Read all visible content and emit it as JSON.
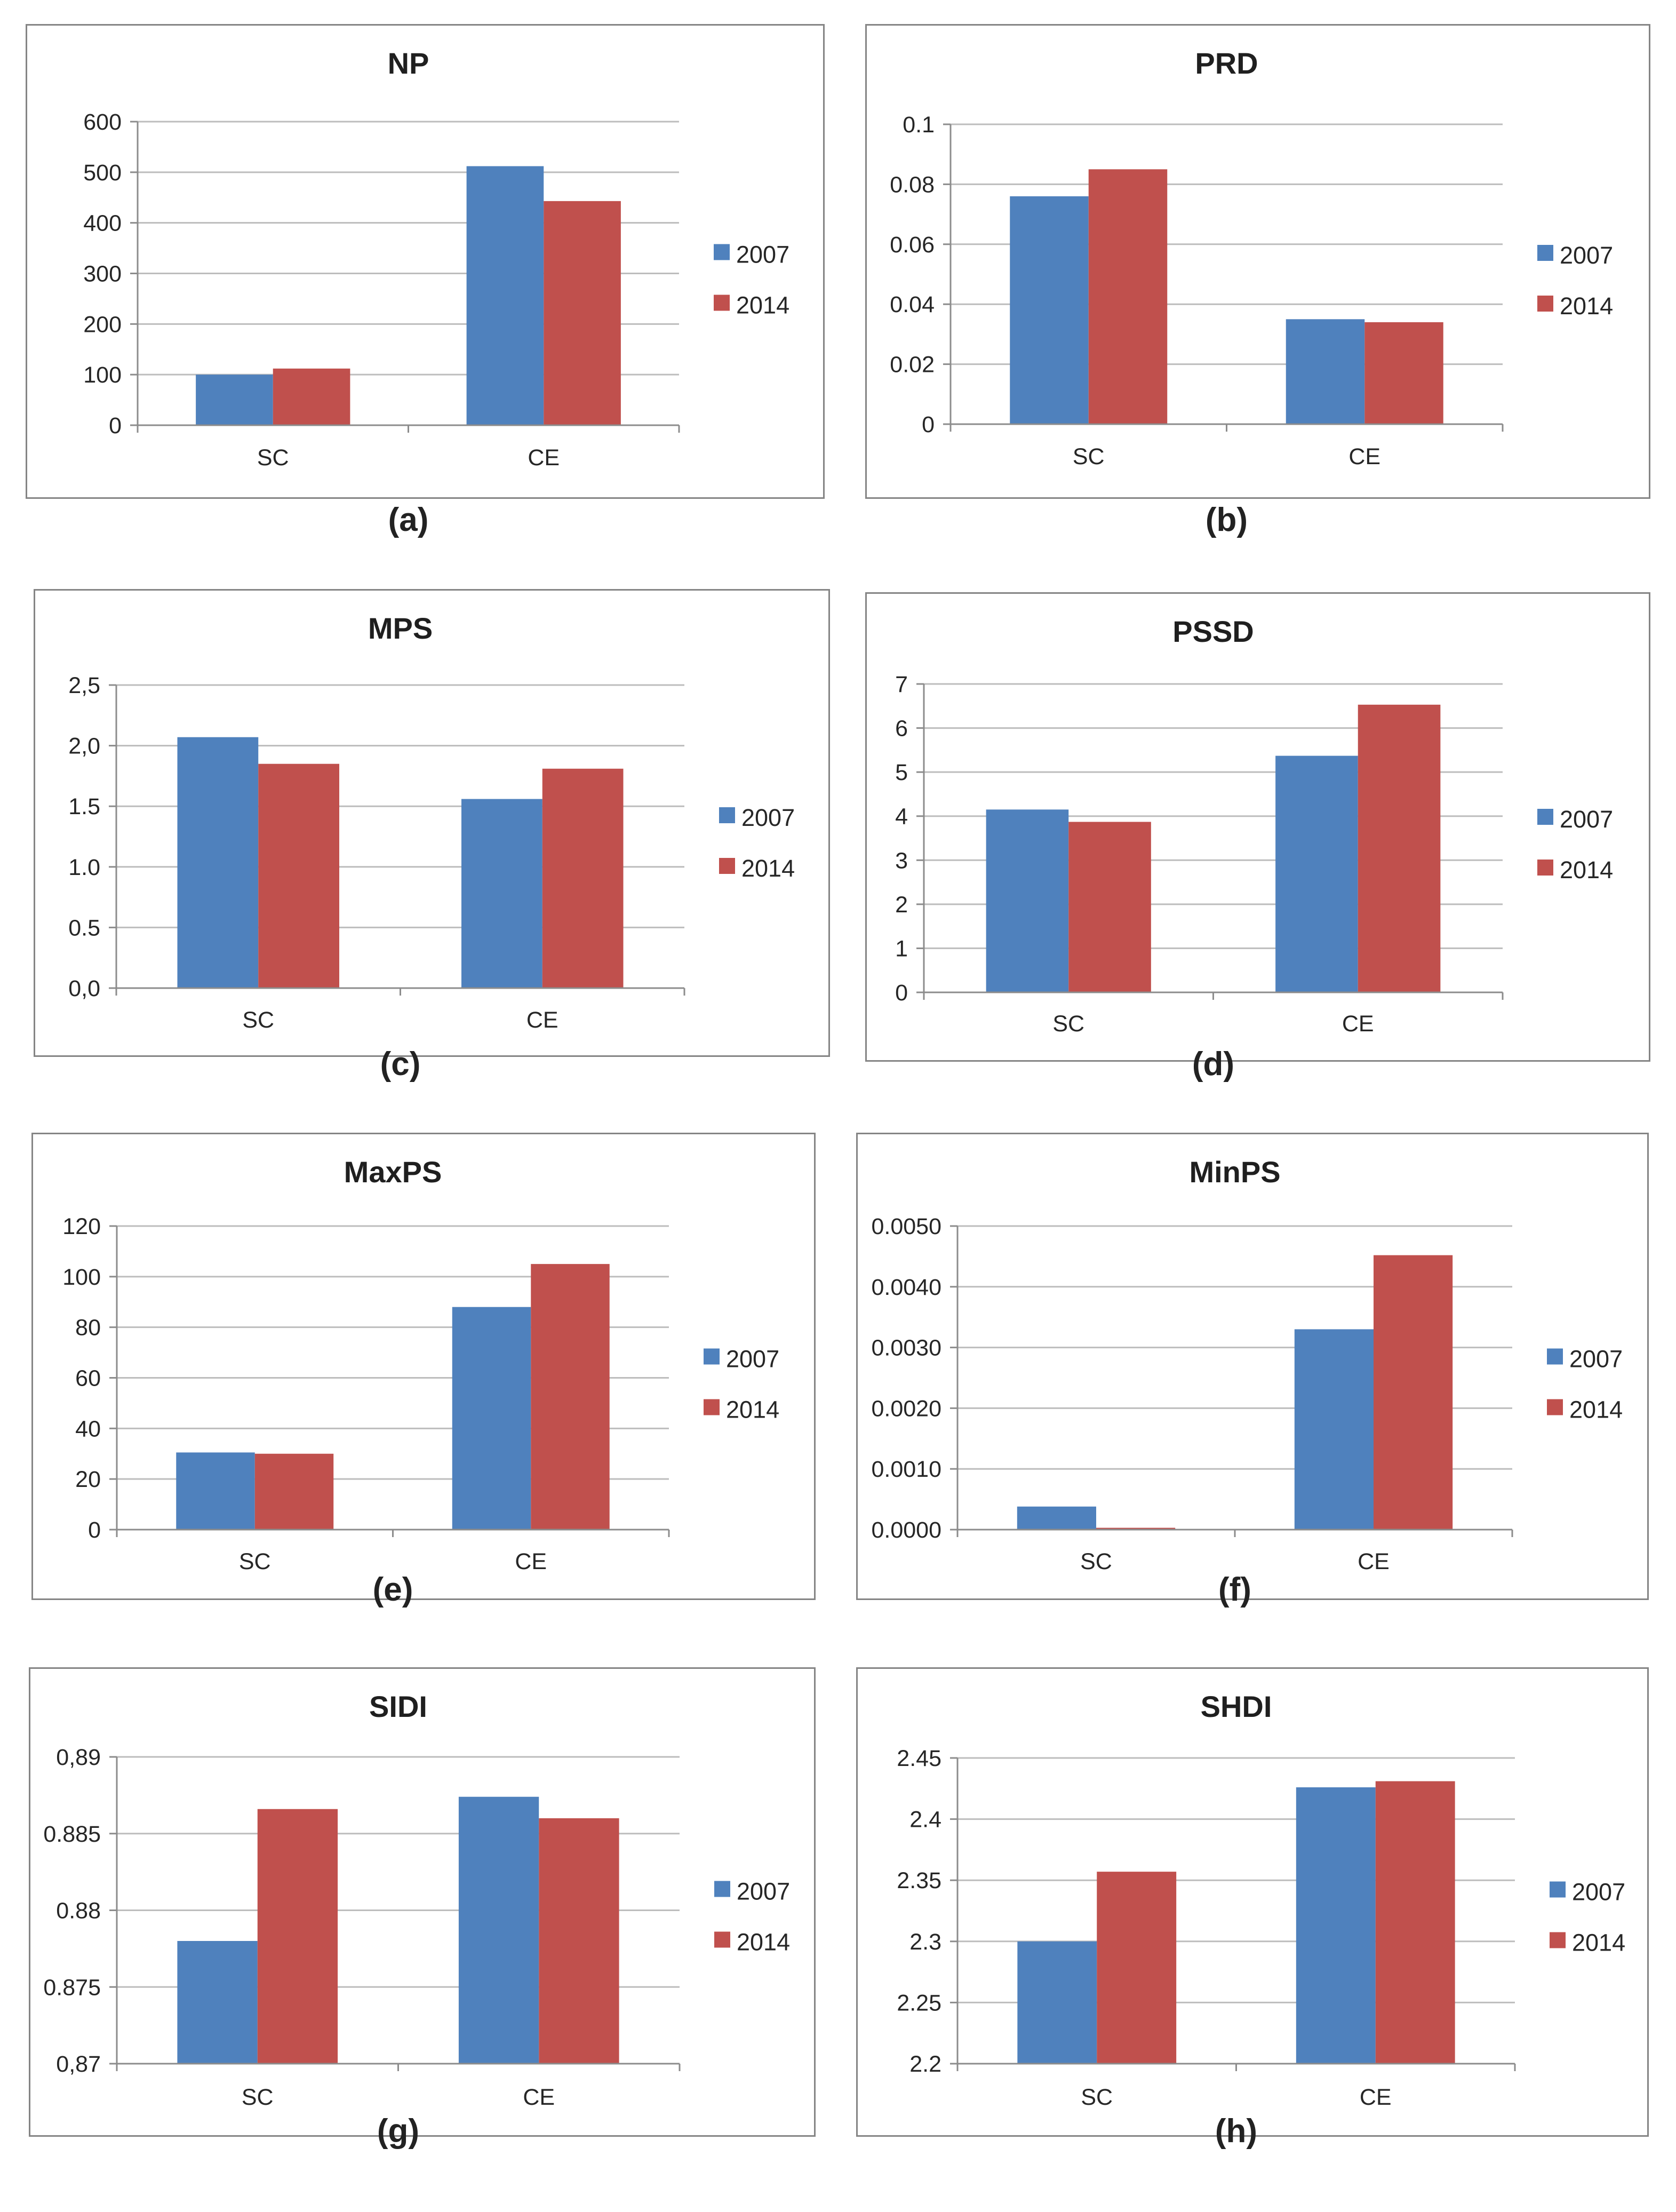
{
  "colors": {
    "series_2007": "#4f81bd",
    "series_2014": "#c0504d",
    "grid": "#bdbdbd",
    "axis": "#8c8c8c"
  },
  "chart_data": [
    {
      "id": "a",
      "type": "bar",
      "title": "NP",
      "caption": "(a)",
      "categories": [
        "SC",
        "CE"
      ],
      "series": [
        {
          "name": "2007",
          "values": [
            100,
            512
          ]
        },
        {
          "name": "2014",
          "values": [
            112,
            443
          ]
        }
      ],
      "ylim": [
        0,
        600
      ],
      "ticks": [
        "0",
        "100",
        "200",
        "300",
        "400",
        "500",
        "600"
      ],
      "xlabel": "",
      "ylabel": "",
      "grid": true,
      "legend": "right"
    },
    {
      "id": "b",
      "type": "bar",
      "title": "PRD",
      "caption": "(b)",
      "categories": [
        "SC",
        "CE"
      ],
      "series": [
        {
          "name": "2007",
          "values": [
            0.076,
            0.035
          ]
        },
        {
          "name": "2014",
          "values": [
            0.085,
            0.034
          ]
        }
      ],
      "ylim": [
        0,
        0.1
      ],
      "ticks": [
        "0",
        "0.02",
        "0.04",
        "0.06",
        "0.08",
        "0.1"
      ],
      "xlabel": "",
      "ylabel": "",
      "grid": true,
      "legend": "right"
    },
    {
      "id": "c",
      "type": "bar",
      "title": "MPS",
      "caption": "(c)",
      "categories": [
        "SC",
        "CE"
      ],
      "series": [
        {
          "name": "2007",
          "values": [
            2.07,
            1.56
          ]
        },
        {
          "name": "2014",
          "values": [
            1.85,
            1.81
          ]
        }
      ],
      "ylim": [
        0,
        2.5
      ],
      "ticks": [
        "0,0",
        "0.5",
        "1.0",
        "1.5",
        "2,0",
        "2,5"
      ],
      "xlabel": "",
      "ylabel": "",
      "grid": true,
      "legend": "right"
    },
    {
      "id": "d",
      "type": "bar",
      "title": "PSSD",
      "caption": "(d)",
      "categories": [
        "SC",
        "CE"
      ],
      "series": [
        {
          "name": "2007",
          "values": [
            4.15,
            5.37
          ]
        },
        {
          "name": "2014",
          "values": [
            3.87,
            6.53
          ]
        }
      ],
      "ylim": [
        0,
        7
      ],
      "ticks": [
        "0",
        "1",
        "2",
        "3",
        "4",
        "5",
        "6",
        "7"
      ],
      "xlabel": "",
      "ylabel": "",
      "grid": true,
      "legend": "right"
    },
    {
      "id": "e",
      "type": "bar",
      "title": "MaxPS",
      "caption": "(e)",
      "categories": [
        "SC",
        "CE"
      ],
      "series": [
        {
          "name": "2007",
          "values": [
            30.5,
            88
          ]
        },
        {
          "name": "2014",
          "values": [
            30,
            105
          ]
        }
      ],
      "ylim": [
        0,
        120
      ],
      "ticks": [
        "0",
        "20",
        "40",
        "60",
        "80",
        "100",
        "120"
      ],
      "xlabel": "",
      "ylabel": "",
      "grid": true,
      "legend": "right"
    },
    {
      "id": "f",
      "type": "bar",
      "title": "MinPS",
      "caption": "(f)",
      "categories": [
        "SC",
        "CE"
      ],
      "series": [
        {
          "name": "2007",
          "values": [
            0.00038,
            0.0033
          ]
        },
        {
          "name": "2014",
          "values": [
            3e-05,
            0.00452
          ]
        }
      ],
      "ylim": [
        0,
        0.005
      ],
      "ticks": [
        "0.0000",
        "0.0010",
        "0.0020",
        "0.0030",
        "0.0040",
        "0.0050"
      ],
      "xlabel": "",
      "ylabel": "",
      "grid": true,
      "legend": "right"
    },
    {
      "id": "g",
      "type": "bar",
      "title": "SIDI",
      "caption": "(g)",
      "categories": [
        "SC",
        "CE"
      ],
      "series": [
        {
          "name": "2007",
          "values": [
            0.878,
            0.8874
          ]
        },
        {
          "name": "2014",
          "values": [
            0.8866,
            0.886
          ]
        }
      ],
      "ylim": [
        0.87,
        0.89
      ],
      "ticks": [
        "0,87",
        "0.875",
        "0.88",
        "0.885",
        "0,89"
      ],
      "xlabel": "",
      "ylabel": "",
      "grid": true,
      "legend": "right"
    },
    {
      "id": "h",
      "type": "bar",
      "title": "SHDI",
      "caption": "(h)",
      "categories": [
        "SC",
        "CE"
      ],
      "series": [
        {
          "name": "2007",
          "values": [
            2.3,
            2.426
          ]
        },
        {
          "name": "2014",
          "values": [
            2.357,
            2.431
          ]
        }
      ],
      "ylim": [
        2.2,
        2.45
      ],
      "ticks": [
        "2.2",
        "2.25",
        "2.3",
        "2.35",
        "2.4",
        "2.45"
      ],
      "xlabel": "",
      "ylabel": "",
      "grid": true,
      "legend": "right"
    }
  ]
}
